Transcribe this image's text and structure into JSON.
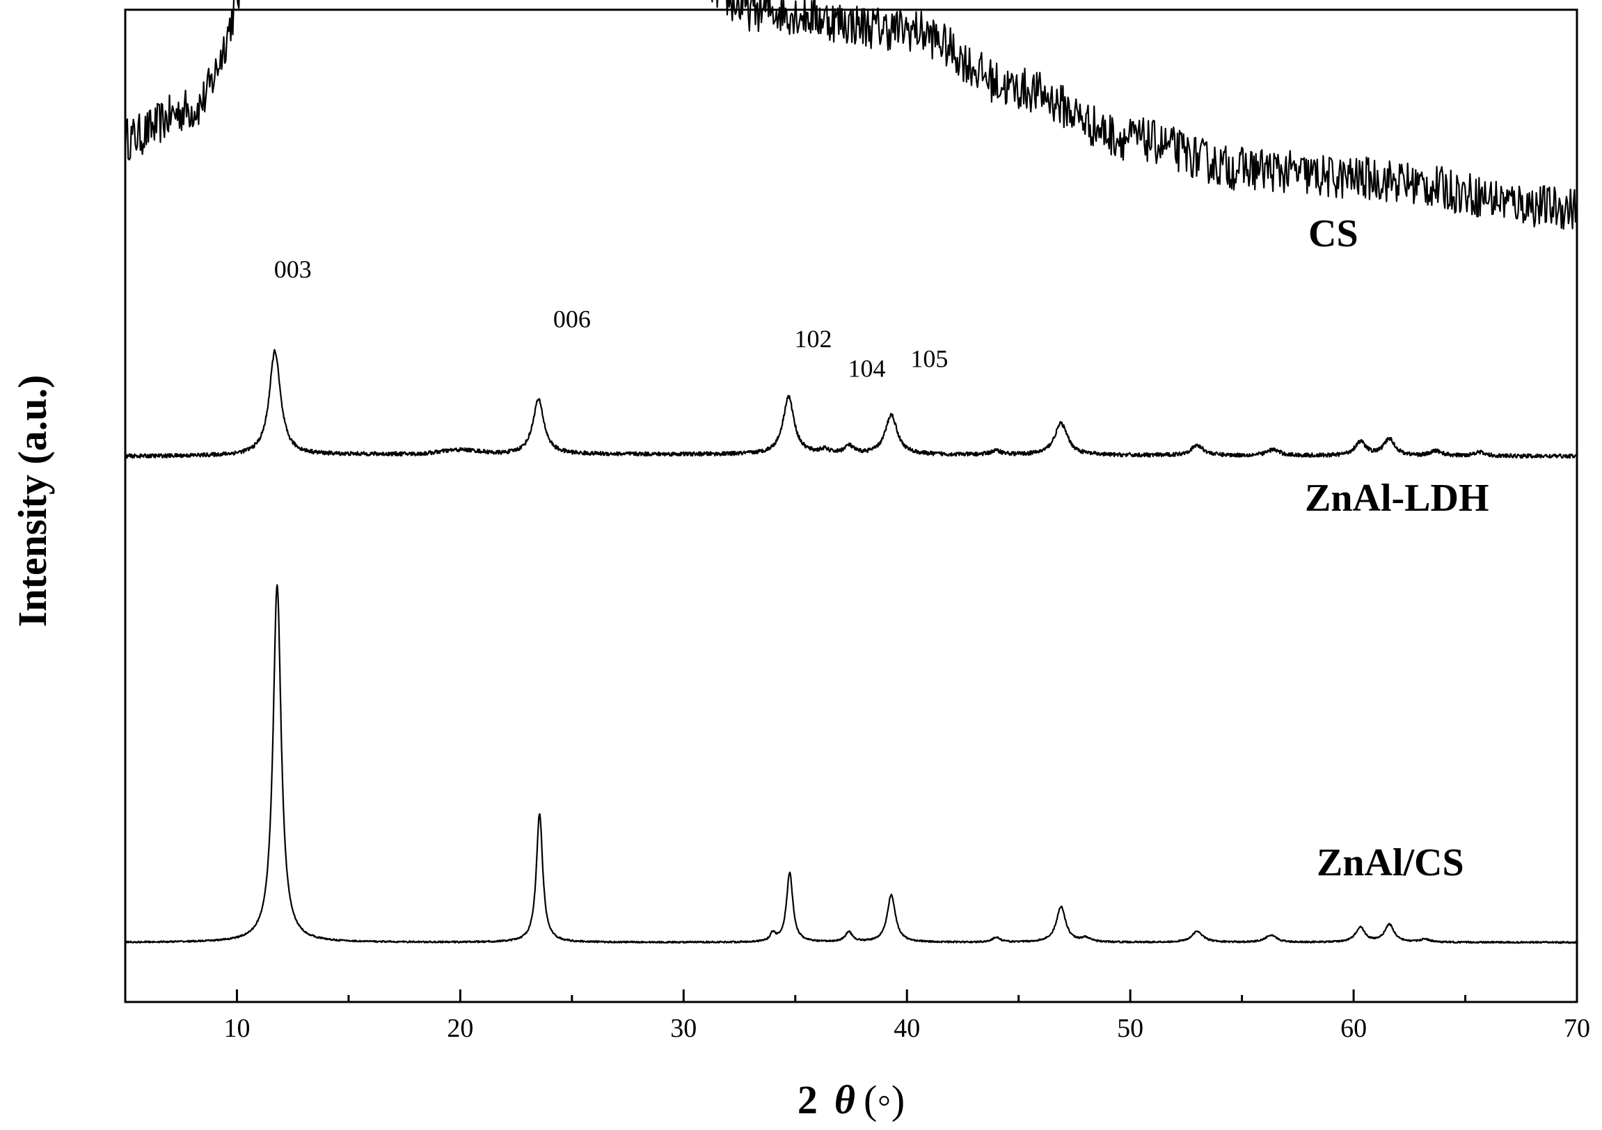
{
  "chart_data": {
    "type": "line",
    "xlabel": {
      "main": "2",
      "theta": "θ",
      "unit": "(◦)"
    },
    "ylabel": "Intensity (a.u.)",
    "xlim": [
      5,
      70
    ],
    "x_ticks": [
      10,
      20,
      30,
      40,
      50,
      60,
      70
    ],
    "x_minor_step": 5,
    "y_ticks_shown": false,
    "series": [
      {
        "name": "CS",
        "offset": 0.82,
        "noise": 0.022,
        "baseline": [
          [
            5,
            0.05
          ],
          [
            8,
            0.08
          ],
          [
            12,
            0.3
          ],
          [
            16,
            0.45
          ],
          [
            18,
            0.6
          ],
          [
            20,
            0.95
          ],
          [
            21.5,
            0.8
          ],
          [
            23,
            0.6
          ],
          [
            26,
            0.38
          ],
          [
            28,
            0.28
          ],
          [
            30,
            0.22
          ],
          [
            33,
            0.18
          ],
          [
            40,
            0.16
          ],
          [
            45,
            0.1
          ],
          [
            50,
            0.05
          ],
          [
            55,
            0.02
          ],
          [
            60,
            0.01
          ],
          [
            70,
            -0.02
          ]
        ],
        "peaks": [
          [
            29.3,
            0.07,
            0.25
          ]
        ]
      },
      {
        "name": "ZnAl-LDH",
        "offset": 0.55,
        "noise": 0.002,
        "baseline": [
          [
            5,
            0
          ],
          [
            18,
            0.002
          ],
          [
            20,
            0.006
          ],
          [
            22,
            0.002
          ],
          [
            70,
            0
          ]
        ],
        "peaks": [
          [
            11.7,
            0.105,
            0.3
          ],
          [
            23.5,
            0.055,
            0.3
          ],
          [
            34.7,
            0.058,
            0.3
          ],
          [
            36.3,
            0.004,
            0.25
          ],
          [
            37.4,
            0.008,
            0.25
          ],
          [
            39.3,
            0.04,
            0.32
          ],
          [
            44.0,
            0.004,
            0.3
          ],
          [
            46.9,
            0.032,
            0.35
          ],
          [
            53.0,
            0.01,
            0.35
          ],
          [
            56.4,
            0.006,
            0.35
          ],
          [
            60.3,
            0.014,
            0.3
          ],
          [
            61.6,
            0.017,
            0.3
          ],
          [
            63.7,
            0.005,
            0.3
          ],
          [
            65.6,
            0.004,
            0.3
          ]
        ]
      },
      {
        "name": "ZnAl/CS",
        "offset": 0.06,
        "noise": 0.0008,
        "baseline": [
          [
            5,
            0
          ],
          [
            70,
            0
          ]
        ],
        "peaks": [
          [
            11.8,
            0.36,
            0.22
          ],
          [
            23.55,
            0.13,
            0.17
          ],
          [
            34.0,
            0.008,
            0.15
          ],
          [
            34.75,
            0.07,
            0.17
          ],
          [
            37.4,
            0.01,
            0.2
          ],
          [
            39.3,
            0.048,
            0.22
          ],
          [
            44.0,
            0.005,
            0.2
          ],
          [
            46.9,
            0.036,
            0.25
          ],
          [
            48.0,
            0.004,
            0.25
          ],
          [
            53.0,
            0.011,
            0.3
          ],
          [
            56.3,
            0.007,
            0.3
          ],
          [
            60.3,
            0.015,
            0.25
          ],
          [
            61.6,
            0.018,
            0.25
          ],
          [
            63.2,
            0.003,
            0.25
          ]
        ]
      }
    ],
    "peak_labels": [
      {
        "text": "003",
        "x": 12.5,
        "y": 0.73
      },
      {
        "text": "006",
        "x": 25.0,
        "y": 0.68
      },
      {
        "text": "102",
        "x": 35.8,
        "y": 0.66
      },
      {
        "text": "104",
        "x": 38.2,
        "y": 0.63
      },
      {
        "text": "105",
        "x": 41.0,
        "y": 0.64
      }
    ]
  }
}
